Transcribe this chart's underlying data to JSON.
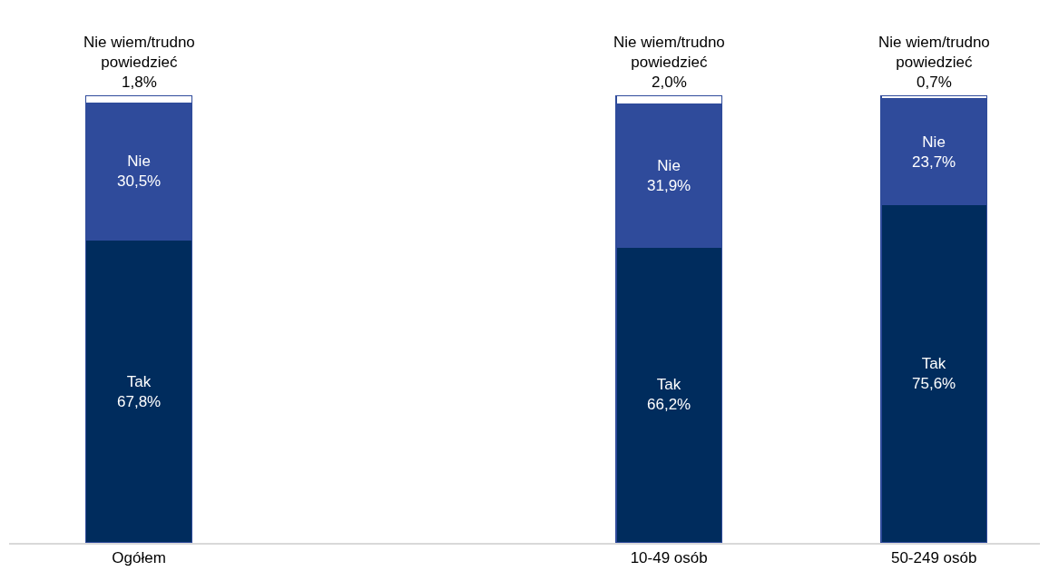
{
  "chart_data": {
    "type": "bar",
    "stacked": true,
    "categories": [
      "Ogółem",
      null,
      "10-49 osób",
      "50-249 osób"
    ],
    "series": [
      {
        "name": "Tak",
        "color": "#002c5d",
        "values": [
          67.8,
          null,
          66.2,
          75.6
        ],
        "value_labels": [
          "67,8%",
          null,
          "66,2%",
          "75,6%"
        ]
      },
      {
        "name": "Nie",
        "color": "#2f4b9b",
        "values": [
          30.5,
          null,
          31.9,
          23.7
        ],
        "value_labels": [
          "30,5%",
          null,
          "31,9%",
          "23,7%"
        ]
      },
      {
        "name": "Nie wiem/trudno powiedzieć",
        "color": "#ffffff",
        "values": [
          1.8,
          null,
          2.0,
          0.7
        ],
        "value_labels": [
          "1,8%",
          null,
          "2,0%",
          "0,7%"
        ]
      }
    ]
  }
}
